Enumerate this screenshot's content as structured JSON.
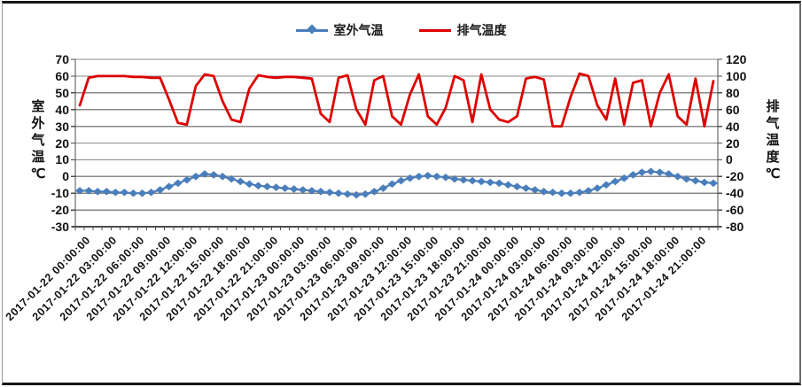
{
  "colors": {
    "outdoor_series": "#4A7EBB",
    "exhaust_series": "#DD0000",
    "gridline": "#898989",
    "axis_line": "#4d4d4d",
    "text": "#111111",
    "background": "#ffffff"
  },
  "legend": {
    "items": [
      {
        "label": "室外气温",
        "color": "#4A7EBB",
        "marker": "diamond-line"
      },
      {
        "label": "排气温度",
        "color": "#DD0000",
        "marker": "line"
      }
    ]
  },
  "chart_data": {
    "type": "line",
    "title": "",
    "grid": "horizontal",
    "legend_position": "top-center",
    "x_label_every_n_points": 3,
    "x_labels_shown": [
      "2017-01-22 00:00:00",
      "2017-01-22 03:00:00",
      "2017-01-22 06:00:00",
      "2017-01-22 09:00:00",
      "2017-01-22 12:00:00",
      "2017-01-22 15:00:00",
      "2017-01-22 18:00:00",
      "2017-01-22 21:00:00",
      "2017-01-23 00:00:00",
      "2017-01-23 03:00:00",
      "2017-01-23 06:00:00",
      "2017-01-23 09:00:00",
      "2017-01-23 12:00:00",
      "2017-01-23 15:00:00",
      "2017-01-23 18:00:00",
      "2017-01-23 21:00:00",
      "2017-01-24 00:00:00",
      "2017-01-24 03:00:00",
      "2017-01-24 06:00:00",
      "2017-01-24 09:00:00",
      "2017-01-24 12:00:00",
      "2017-01-24 15:00:00",
      "2017-01-24 18:00:00",
      "2017-01-24 21:00:00"
    ],
    "left_axis": {
      "title": "室外气温℃",
      "min": -30,
      "max": 70,
      "step": 10,
      "ticks": [
        70,
        60,
        50,
        40,
        30,
        20,
        10,
        0,
        -10,
        -20,
        -30
      ]
    },
    "right_axis": {
      "title": "排气温度℃",
      "min": -80,
      "max": 120,
      "step": 20,
      "ticks": [
        120,
        100,
        80,
        60,
        40,
        20,
        0,
        -20,
        -40,
        -60,
        -80
      ]
    },
    "series": [
      {
        "name": "室外气温",
        "axis": "left",
        "color": "#4A7EBB",
        "marker": "diamond",
        "values": [
          -8.5,
          -8.5,
          -9,
          -9,
          -9.5,
          -9.5,
          -10,
          -10,
          -9.5,
          -8,
          -6,
          -4,
          -2,
          0,
          1.5,
          1,
          0,
          -1.5,
          -3,
          -4.5,
          -5.5,
          -6,
          -6.5,
          -7,
          -7.5,
          -8,
          -8.5,
          -9,
          -9.5,
          -10,
          -10.5,
          -11,
          -10.5,
          -9,
          -7,
          -4.5,
          -2.5,
          -1,
          0,
          0.5,
          0,
          -0.5,
          -1.5,
          -2,
          -2.5,
          -3,
          -3.5,
          -4,
          -5,
          -6,
          -7,
          -8,
          -9,
          -9.5,
          -10,
          -10,
          -9.5,
          -8.5,
          -7,
          -5,
          -3,
          -1,
          1,
          2.5,
          3,
          2.5,
          1.5,
          0,
          -1.5,
          -2.5,
          -3.5,
          -4
        ]
      },
      {
        "name": "排气温度",
        "axis": "right",
        "color": "#DD0000",
        "marker": "none",
        "values": [
          65,
          98,
          100,
          100,
          100,
          100,
          99,
          99,
          98,
          98,
          72,
          44,
          42,
          88,
          102,
          100,
          70,
          48,
          45,
          85,
          101,
          99,
          98,
          99,
          99,
          98,
          97,
          55,
          45,
          98,
          101,
          60,
          42,
          95,
          100,
          52,
          42,
          78,
          102,
          52,
          42,
          62,
          100,
          95,
          45,
          102,
          60,
          48,
          45,
          52,
          97,
          99,
          96,
          40,
          40,
          75,
          103,
          100,
          65,
          48,
          97,
          42,
          92,
          95,
          40,
          80,
          102,
          52,
          42,
          97,
          40,
          94
        ]
      }
    ]
  }
}
